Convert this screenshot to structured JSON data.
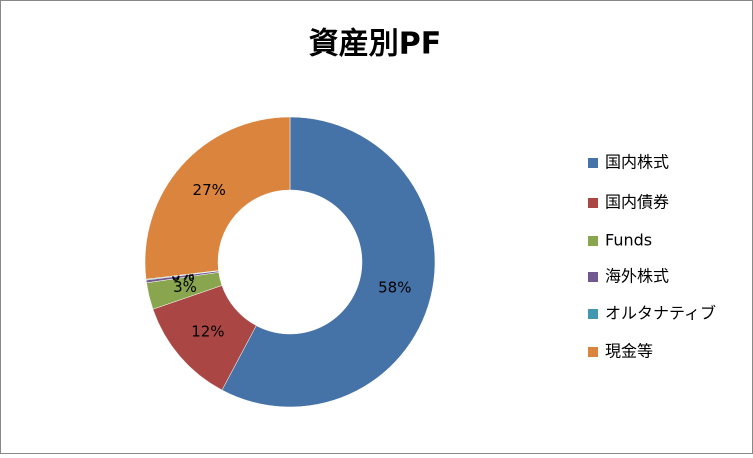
{
  "chart_data": {
    "type": "donut",
    "title": "資産別PF",
    "categories": [
      "国内株式",
      "国内債券",
      "Funds",
      "海外株式",
      "オルタナティブ",
      "現金等"
    ],
    "values": [
      58,
      12,
      3,
      0.3,
      0.1,
      27
    ],
    "value_labels": [
      "58%",
      "12%",
      "3%",
      "0%",
      "0%",
      "27%"
    ],
    "colors": [
      "#4572a7",
      "#aa4643",
      "#89a54e",
      "#71588f",
      "#4198af",
      "#db843d"
    ],
    "legend": "right"
  }
}
